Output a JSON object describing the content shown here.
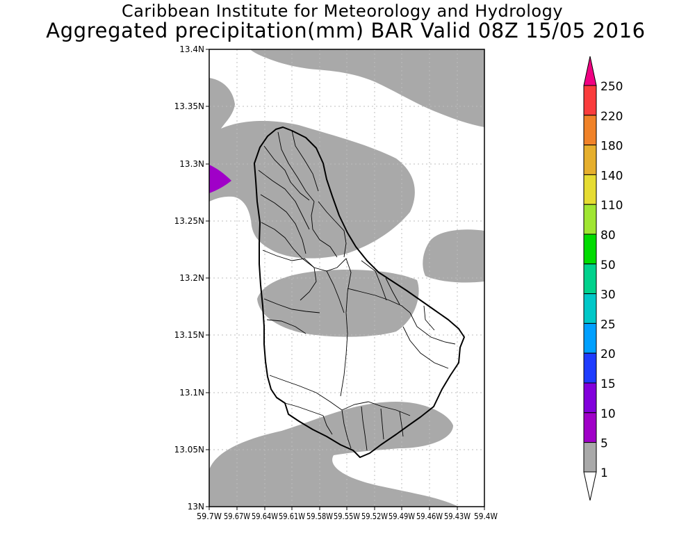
{
  "title": {
    "line1": "Caribbean Institute for Meteorology and Hydrology",
    "line2": "Aggregated precipitation(mm) BAR Valid 08Z 15/05 2016"
  },
  "axes": {
    "lat_ticks": [
      "13.4N",
      "13.35N",
      "13.3N",
      "13.25N",
      "13.2N",
      "13.15N",
      "13.1N",
      "13.05N",
      "13N"
    ],
    "lon_ticks": [
      "59.7W",
      "59.67W",
      "59.64W",
      "59.61W",
      "59.58W",
      "59.55W",
      "59.52W",
      "59.49W",
      "59.46W",
      "59.43W",
      "59.4W"
    ]
  },
  "colorbar": {
    "levels": [
      {
        "label": "1",
        "color": "#a9a9a9"
      },
      {
        "label": "5",
        "color": "#a000c8"
      },
      {
        "label": "10",
        "color": "#8200dc"
      },
      {
        "label": "15",
        "color": "#1e3cff"
      },
      {
        "label": "20",
        "color": "#00a0ff"
      },
      {
        "label": "25",
        "color": "#00c8c8"
      },
      {
        "label": "30",
        "color": "#00d28c"
      },
      {
        "label": "50",
        "color": "#00dc00"
      },
      {
        "label": "80",
        "color": "#a0e632"
      },
      {
        "label": "110",
        "color": "#e6dc32"
      },
      {
        "label": "140",
        "color": "#e6af2d"
      },
      {
        "label": "180",
        "color": "#f08228"
      },
      {
        "label": "220",
        "color": "#fa3c3c"
      },
      {
        "label": "250",
        "color": ""
      }
    ],
    "top_arrow_color": "#f00082",
    "bottom_arrow_color": "#ffffff"
  }
}
